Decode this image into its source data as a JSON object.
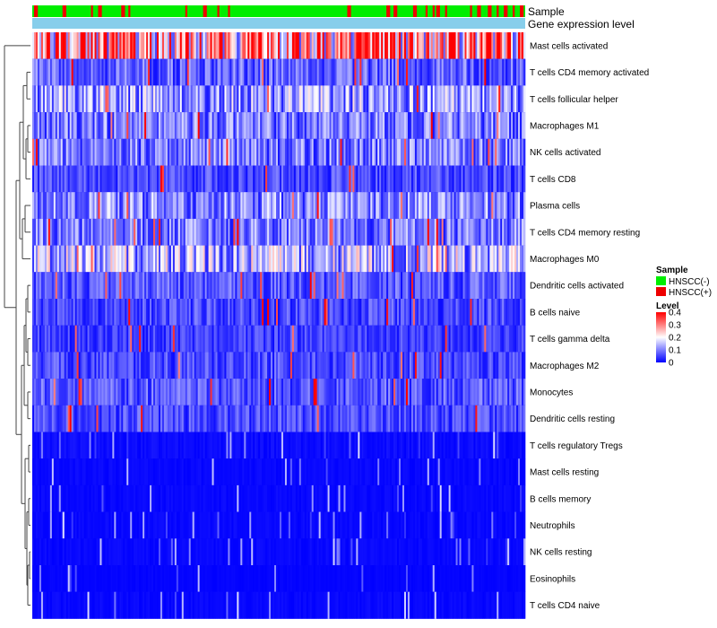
{
  "chart_data": {
    "type": "heatmap",
    "title": "",
    "rows": [
      "Mast cells activated",
      "T cells CD4 memory activated",
      "T cells follicular helper",
      "Macrophages M1",
      "NK cells activated",
      "T cells CD8",
      "Plasma cells",
      "T cells CD4 memory resting",
      "Macrophages M0",
      "Dendritic cells activated",
      "B cells naive",
      "T cells gamma delta",
      "Macrophages M2",
      "Monocytes",
      "Dendritic cells resting",
      "T cells regulatory  Tregs",
      "Mast cells resting",
      "B cells memory",
      "Neutrophils",
      "NK cells resting",
      "Eosinophils",
      "T cells CD4 naive"
    ],
    "row_mean_levels": [
      0.3,
      0.08,
      0.13,
      0.1,
      0.1,
      0.06,
      0.11,
      0.1,
      0.15,
      0.07,
      0.06,
      0.05,
      0.06,
      0.07,
      0.06,
      0.03,
      0.02,
      0.02,
      0.02,
      0.02,
      0.01,
      0.02
    ],
    "column_count": 277,
    "top_annotations": [
      "Sample",
      "Gene expression level"
    ],
    "legend": {
      "sample": {
        "title": "Sample",
        "items": [
          {
            "label": "HNSCC(-)",
            "color": "#00ee00"
          },
          {
            "label": "HNSCC(+)",
            "color": "#ee0000"
          }
        ]
      },
      "level": {
        "title": "Level",
        "ticks": [
          "0.4",
          "0.3",
          "0.2",
          "0.1",
          "0"
        ],
        "tick_values": [
          0.4,
          0.3,
          0.2,
          0.1,
          0
        ],
        "range": [
          0,
          0.4
        ],
        "colors": {
          "low": "#0000ff",
          "mid": "#ffffff",
          "high": "#ff0000"
        }
      }
    },
    "annotation_colors": {
      "gene_expression_level": "#87ceeb"
    }
  }
}
